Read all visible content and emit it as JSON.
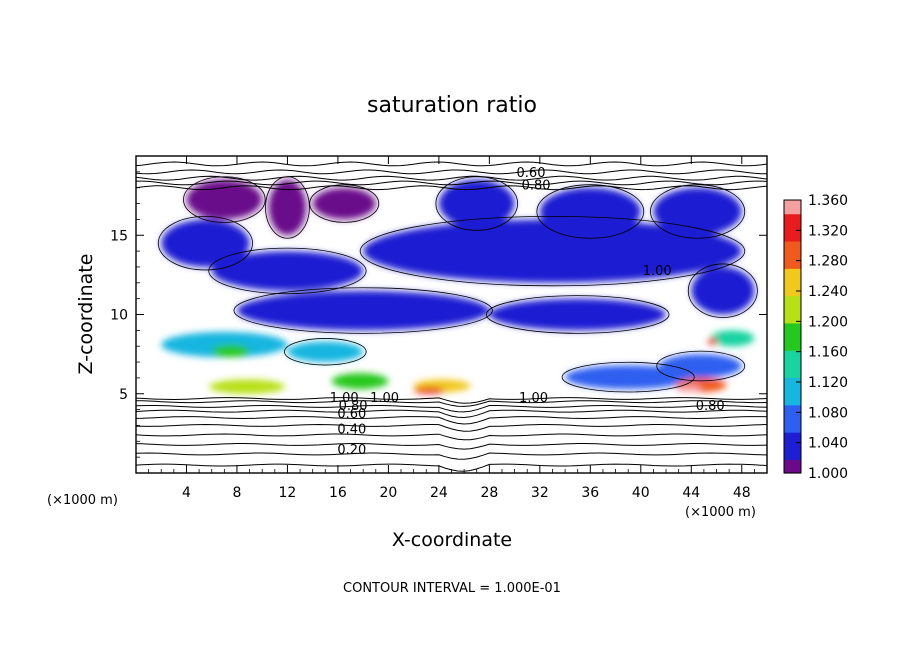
{
  "chart_data": {
    "type": "heatmap",
    "title": "saturation ratio",
    "xlabel": "X-coordinate",
    "ylabel": "Z-coordinate",
    "x_unit": "(×1000 m)",
    "y_unit": "(×1000 m)",
    "footer": "CONTOUR INTERVAL = 1.000E-01",
    "xlim": [
      0,
      50
    ],
    "ylim": [
      0,
      20
    ],
    "x_ticks": [
      4,
      8,
      12,
      16,
      20,
      24,
      28,
      32,
      36,
      40,
      44,
      48
    ],
    "y_ticks": [
      5,
      10,
      15
    ],
    "colorbar": {
      "min": 1.0,
      "max": 1.36,
      "ticks": [
        "1.000",
        "1.040",
        "1.080",
        "1.120",
        "1.160",
        "1.200",
        "1.240",
        "1.280",
        "1.320",
        "1.360"
      ],
      "colors": [
        "#6a0a8a",
        "#1e1ed2",
        "#2f5ff0",
        "#17b6e0",
        "#19d3a0",
        "#25c81e",
        "#b8e017",
        "#f0c81e",
        "#f05a1e",
        "#e81c1c",
        "#f4a0a0"
      ]
    },
    "contour_labels": [
      {
        "text": "0.60",
        "x": 31.3,
        "z": 19.0
      },
      {
        "text": "0.80",
        "x": 31.7,
        "z": 18.2
      },
      {
        "text": "1.00",
        "x": 41.3,
        "z": 12.8
      },
      {
        "text": "1.00",
        "x": 19.7,
        "z": 4.8
      },
      {
        "text": "1.00",
        "x": 31.5,
        "z": 4.8
      },
      {
        "text": "1.00",
        "x": 16.5,
        "z": 4.8
      },
      {
        "text": "0.80",
        "x": 17.2,
        "z": 4.3
      },
      {
        "text": "0.60",
        "x": 17.1,
        "z": 3.8
      },
      {
        "text": "0.40",
        "x": 17.1,
        "z": 2.8
      },
      {
        "text": "0.20",
        "x": 17.1,
        "z": 1.5
      },
      {
        "text": "0.80",
        "x": 45.5,
        "z": 4.3
      }
    ],
    "supersaturated_regions": [
      {
        "x": 4.0,
        "z": 16.0,
        "w": 6.0,
        "h": 2.5,
        "value": 1.01
      },
      {
        "x": 10.5,
        "z": 15.0,
        "w": 3.0,
        "h": 3.5,
        "value": 1.01
      },
      {
        "x": 2.0,
        "z": 13.0,
        "w": 7.0,
        "h": 3.0,
        "value": 1.02
      },
      {
        "x": 14.0,
        "z": 16.0,
        "w": 5.0,
        "h": 2.0,
        "value": 1.01
      },
      {
        "x": 24.0,
        "z": 15.5,
        "w": 6.0,
        "h": 3.0,
        "value": 1.02
      },
      {
        "x": 32.0,
        "z": 15.0,
        "w": 8.0,
        "h": 3.0,
        "value": 1.03
      },
      {
        "x": 41.0,
        "z": 15.0,
        "w": 7.0,
        "h": 3.0,
        "value": 1.02
      },
      {
        "x": 18.0,
        "z": 12.0,
        "w": 30.0,
        "h": 4.0,
        "value": 1.04
      },
      {
        "x": 6.0,
        "z": 11.5,
        "w": 12.0,
        "h": 2.5,
        "value": 1.03
      },
      {
        "x": 8.0,
        "z": 9.0,
        "w": 20.0,
        "h": 2.5,
        "value": 1.05
      },
      {
        "x": 28.0,
        "z": 9.0,
        "w": 14.0,
        "h": 2.0,
        "value": 1.03
      },
      {
        "x": 44.0,
        "z": 10.0,
        "w": 5.0,
        "h": 3.0,
        "value": 1.02
      },
      {
        "x": 2.0,
        "z": 7.3,
        "w": 10.0,
        "h": 1.6,
        "value": 1.12
      },
      {
        "x": 6.0,
        "z": 7.3,
        "w": 3.0,
        "h": 0.8,
        "value": 1.18
      },
      {
        "x": 12.0,
        "z": 7.0,
        "w": 6.0,
        "h": 1.3,
        "value": 1.09
      },
      {
        "x": 45.5,
        "z": 8.0,
        "w": 3.5,
        "h": 1.0,
        "value": 1.14
      },
      {
        "x": 45.3,
        "z": 8.1,
        "w": 0.8,
        "h": 0.4,
        "value": 1.32
      },
      {
        "x": 41.5,
        "z": 6.0,
        "w": 6.5,
        "h": 1.5,
        "value": 1.08
      },
      {
        "x": 5.8,
        "z": 5.0,
        "w": 6.0,
        "h": 0.9,
        "value": 1.2
      },
      {
        "x": 15.5,
        "z": 5.3,
        "w": 4.5,
        "h": 1.0,
        "value": 1.18
      },
      {
        "x": 22.0,
        "z": 5.1,
        "w": 4.5,
        "h": 0.8,
        "value": 1.26
      },
      {
        "x": 22.0,
        "z": 5.0,
        "w": 2.5,
        "h": 0.4,
        "value": 1.34
      },
      {
        "x": 34.0,
        "z": 5.3,
        "w": 10.0,
        "h": 1.5,
        "value": 1.06
      },
      {
        "x": 42.8,
        "z": 5.1,
        "w": 4.0,
        "h": 0.9,
        "value": 1.3
      },
      {
        "x": 42.8,
        "z": 5.1,
        "w": 2.0,
        "h": 0.5,
        "value": 1.35
      }
    ]
  }
}
